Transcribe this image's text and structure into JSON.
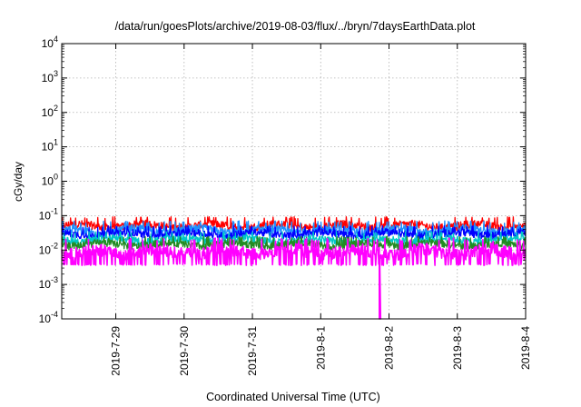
{
  "chart_data": {
    "type": "line",
    "title": "/data/run/goesPlots/archive/2019-08-03/flux/../bryn/7daysEarthData.plot",
    "xlabel": "Coordinated Universal Time (UTC)",
    "ylabel": "cGy/day",
    "x_range": [
      "2019-07-28T05:00",
      "2019-08-04T00:00"
    ],
    "x_ticks": [
      "2019-7-29",
      "2019-7-30",
      "2019-7-31",
      "2019-8-1",
      "2019-8-2",
      "2019-8-3",
      "2019-8-4"
    ],
    "y_scale": "log",
    "ylim": [
      0.0001,
      10000
    ],
    "y_ticks": [
      {
        "base": "10",
        "exp": "-4"
      },
      {
        "base": "10",
        "exp": "-3"
      },
      {
        "base": "10",
        "exp": "-2"
      },
      {
        "base": "10",
        "exp": "-1"
      },
      {
        "base": "10",
        "exp": "0"
      },
      {
        "base": "10",
        "exp": "1"
      },
      {
        "base": "10",
        "exp": "2"
      },
      {
        "base": "10",
        "exp": "3"
      },
      {
        "base": "10",
        "exp": "4"
      }
    ],
    "grid": true,
    "dropout": {
      "x": "2019-08-01T20:30",
      "y_min": 0.0001
    },
    "series": [
      {
        "color": "#ff0000",
        "band": [
          0.03,
          0.08
        ]
      },
      {
        "color": "#1e90ff",
        "band": [
          0.02,
          0.06
        ]
      },
      {
        "color": "#0000ff",
        "band": [
          0.018,
          0.045
        ]
      },
      {
        "color": "#00c8c8",
        "band": [
          0.012,
          0.03
        ]
      },
      {
        "color": "#228b22",
        "band": [
          0.009,
          0.022
        ]
      },
      {
        "color": "#ff00ff",
        "band": [
          0.004,
          0.018
        ]
      }
    ]
  }
}
